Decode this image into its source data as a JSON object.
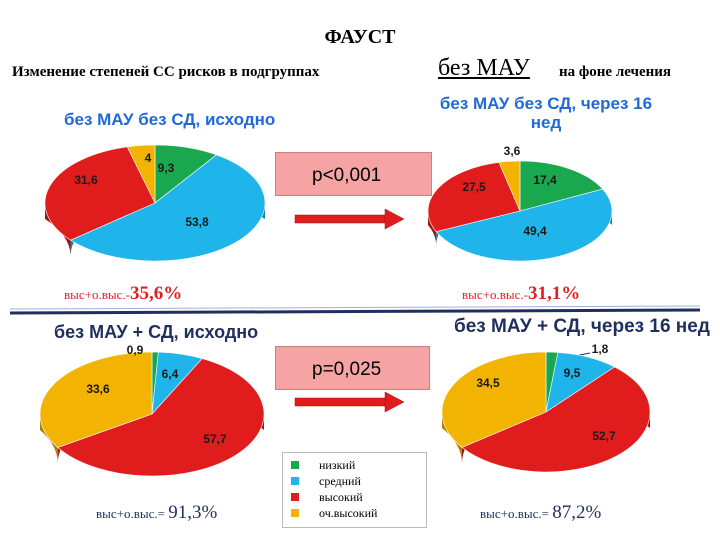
{
  "header": {
    "title": "ФАУСТ",
    "subtitle_left": "Изменение степеней СС рисков  в подгруппах",
    "subtitle_mid": "без МАУ ",
    "subtitle_right": "на фоне лечения"
  },
  "colors": {
    "low": "#1aa84f",
    "medium": "#1fb4ea",
    "high": "#e01c1c",
    "very_high": "#f2b400",
    "accent_blue": "#1e6ad8",
    "dark_blue": "#1f2f5e"
  },
  "comparisons": {
    "top": {
      "p_value": "p<0,001"
    },
    "bottom": {
      "p_value": "p=0,025"
    }
  },
  "legend": {
    "items": [
      {
        "key": "low",
        "label": "низкий"
      },
      {
        "key": "medium",
        "label": "средний"
      },
      {
        "key": "high",
        "label": "высокий"
      },
      {
        "key": "very_high",
        "label": "оч.высокий"
      }
    ]
  },
  "chart_data": [
    {
      "type": "pie",
      "title": "без МАУ без СД, исходно",
      "slices": [
        {
          "category": "low",
          "value": 9.3,
          "label": "9,3"
        },
        {
          "category": "medium",
          "value": 53.8,
          "label": "53,8"
        },
        {
          "category": "high",
          "value": 31.6,
          "label": "31,6"
        },
        {
          "category": "very_high",
          "value": 4,
          "label": "4"
        }
      ],
      "summary_prefix": "выс+о.выс.-",
      "summary_value": "35,6%"
    },
    {
      "type": "pie",
      "title": "без МАУ без СД, через 16 нед",
      "slices": [
        {
          "category": "low",
          "value": 17.4,
          "label": "17,4"
        },
        {
          "category": "medium",
          "value": 49.4,
          "label": "49,4"
        },
        {
          "category": "high",
          "value": 27.5,
          "label": "27,5"
        },
        {
          "category": "very_high",
          "value": 3.6,
          "label": "3,6"
        }
      ],
      "summary_prefix": "выс+о.выс.-",
      "summary_value": "31,1%"
    },
    {
      "type": "pie",
      "title": "без МАУ + СД, исходно",
      "slices": [
        {
          "category": "low",
          "value": 0.9,
          "label": "0,9"
        },
        {
          "category": "medium",
          "value": 6.4,
          "label": "6,4"
        },
        {
          "category": "high",
          "value": 57.7,
          "label": "57,7"
        },
        {
          "category": "very_high",
          "value": 33.6,
          "label": "33,6"
        }
      ],
      "summary_prefix": "выс+о.выс.= ",
      "summary_value": "91,3%"
    },
    {
      "type": "pie",
      "title": "без МАУ + СД,  через 16 нед",
      "slices": [
        {
          "category": "low",
          "value": 1.8,
          "label": "1,8"
        },
        {
          "category": "medium",
          "value": 9.5,
          "label": "9,5"
        },
        {
          "category": "high",
          "value": 52.7,
          "label": "52,7"
        },
        {
          "category": "very_high",
          "value": 34.5,
          "label": "34,5"
        }
      ],
      "summary_prefix": "выс+о.выс.= ",
      "summary_value": "87,2%"
    }
  ]
}
